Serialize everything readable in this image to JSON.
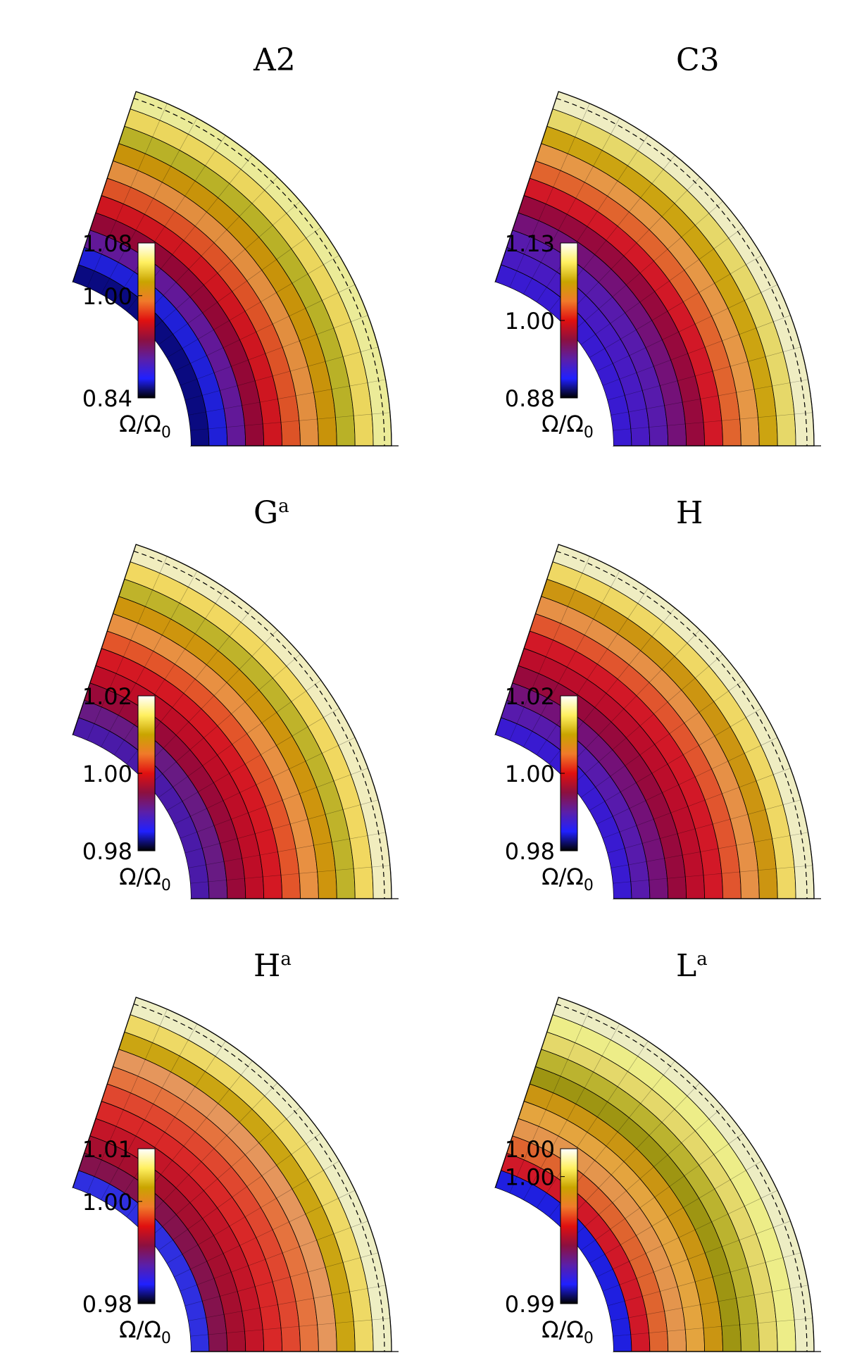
{
  "figure": {
    "colorbar_unit": "Ω/Ω",
    "colorbar_unit_sub": "0",
    "panels": [
      {
        "id": "A2",
        "label": "A2",
        "sup": "",
        "ticks": [
          {
            "text": "1.08",
            "frac": 1.0
          },
          {
            "text": "1.00",
            "frac": 0.66
          },
          {
            "text": "0.84",
            "frac": 0.0
          }
        ],
        "stops": [
          "#000000",
          "#2020ff",
          "#5b1fa8",
          "#8c1040",
          "#e01010",
          "#f07a2a",
          "#c9a400",
          "#fff060",
          "#ffffff"
        ],
        "rings": [
          "#0b0b80",
          "#2323e0",
          "#6a1a9a",
          "#a00830",
          "#e01818",
          "#f05a20",
          "#f59a3a",
          "#d9a000",
          "#c9c020",
          "#ffe85a",
          "#ffff9a"
        ]
      },
      {
        "id": "C3",
        "label": "C3",
        "sup": "",
        "ticks": [
          {
            "text": "1.13",
            "frac": 1.0
          },
          {
            "text": "1.00",
            "frac": 0.5
          },
          {
            "text": "0.88",
            "frac": 0.0
          }
        ],
        "stops": [
          "#000000",
          "#2020ff",
          "#5b1fa8",
          "#8c1040",
          "#e01010",
          "#f07a2a",
          "#c9a400",
          "#fff060",
          "#ffffff"
        ],
        "rings": [
          "#3a1ad0",
          "#4a1ac0",
          "#5a1aa8",
          "#7a1070",
          "#a00830",
          "#e01818",
          "#f06a20",
          "#f5a23a",
          "#d9b000",
          "#f5e860",
          "#ffffc0"
        ]
      },
      {
        "id": "Ga",
        "label": "G",
        "sup": "a",
        "ticks": [
          {
            "text": "1.02",
            "frac": 1.0
          },
          {
            "text": "1.00",
            "frac": 0.5
          },
          {
            "text": "0.98",
            "frac": 0.0
          }
        ],
        "stops": [
          "#000000",
          "#2020ff",
          "#5b1fa8",
          "#8c1040",
          "#e01010",
          "#f07a2a",
          "#c9a400",
          "#fff060",
          "#ffffff"
        ],
        "rings": [
          "#4a1aa8",
          "#6a1a80",
          "#a00830",
          "#c80c1c",
          "#e01818",
          "#f05a20",
          "#f59a3a",
          "#d9a000",
          "#c9c020",
          "#ffe85a",
          "#ffffc0"
        ]
      },
      {
        "id": "H",
        "label": "H",
        "sup": "",
        "ticks": [
          {
            "text": "1.02",
            "frac": 1.0
          },
          {
            "text": "1.00",
            "frac": 0.5
          },
          {
            "text": "0.98",
            "frac": 0.0
          }
        ],
        "stops": [
          "#000000",
          "#2020ff",
          "#5b1fa8",
          "#8c1040",
          "#e01010",
          "#f07a2a",
          "#c9a400",
          "#fff060",
          "#ffffff"
        ],
        "rings": [
          "#3a1ad0",
          "#5a1aa8",
          "#7a1070",
          "#a00830",
          "#c80c1c",
          "#e01818",
          "#f05a20",
          "#f59a3a",
          "#d9a000",
          "#ffe85a",
          "#ffffc0"
        ]
      },
      {
        "id": "Ha",
        "label": "H",
        "sup": "a",
        "ticks": [
          {
            "text": "1.01",
            "frac": 1.0
          },
          {
            "text": "1.00",
            "frac": 0.66
          },
          {
            "text": "0.98",
            "frac": 0.0
          }
        ],
        "stops": [
          "#000000",
          "#2020ff",
          "#5b1fa8",
          "#8c1040",
          "#e01010",
          "#f07a2a",
          "#c9a400",
          "#fff060",
          "#ffffff"
        ],
        "rings": [
          "#3030e0",
          "#8c1040",
          "#b00c20",
          "#d01418",
          "#e82818",
          "#f04a20",
          "#f57a30",
          "#f5a050",
          "#d9b000",
          "#ffe85a",
          "#ffffc0"
        ]
      },
      {
        "id": "La",
        "label": "L",
        "sup": "a",
        "ticks": [
          {
            "text": "1.00",
            "frac": 1.0
          },
          {
            "text": "1.00",
            "frac": 0.82
          },
          {
            "text": "0.99",
            "frac": 0.0
          }
        ],
        "stops": [
          "#000000",
          "#2020ff",
          "#5b1fa8",
          "#8c1040",
          "#e01010",
          "#f07a2a",
          "#c9a400",
          "#fff060",
          "#ffffff"
        ],
        "rings": [
          "#2020e0",
          "#e01818",
          "#f06a20",
          "#f5a040",
          "#f5b030",
          "#d9a000",
          "#a9a000",
          "#c9c020",
          "#f5e860",
          "#ffff80",
          "#ffffc0"
        ]
      }
    ]
  }
}
